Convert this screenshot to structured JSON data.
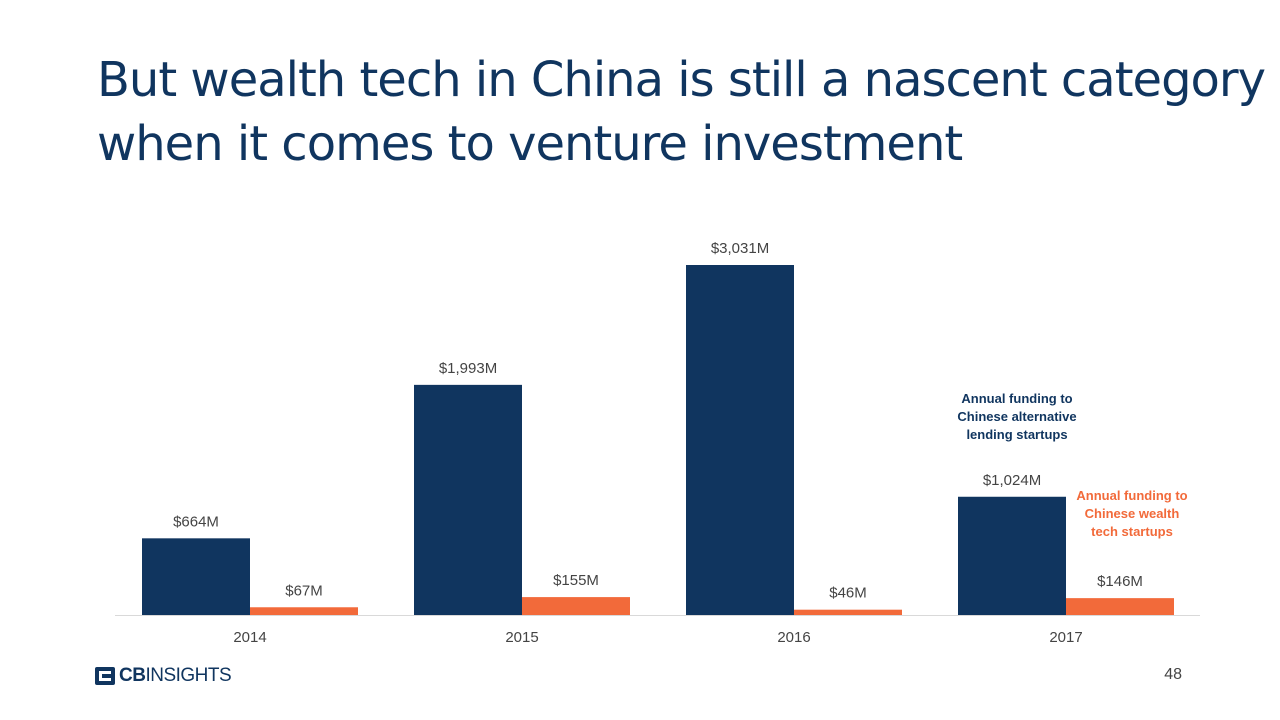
{
  "slide": {
    "title_line1": "But wealth tech in China is still a nascent category",
    "title_line2": "when it comes to venture investment",
    "page_number": "48"
  },
  "brand": {
    "name_bold": "CB",
    "name_regular": "INSIGHTS",
    "color": "#10355f"
  },
  "chart_data": {
    "type": "bar",
    "categories": [
      "2014",
      "2015",
      "2016",
      "2017"
    ],
    "series": [
      {
        "name": "Annual funding to Chinese alternative lending startups",
        "name_lines": [
          "Annual funding to",
          "Chinese alternative",
          "lending startups"
        ],
        "color": "#10355f",
        "values": [
          664,
          1993,
          3031,
          1024
        ],
        "labels": [
          "$664M",
          "$1,993M",
          "$3,031M",
          "$1,024M"
        ]
      },
      {
        "name": "Annual funding to Chinese wealth tech startups",
        "name_lines": [
          "Annual funding to",
          "Chinese wealth",
          "tech startups"
        ],
        "color": "#f26a3a",
        "values": [
          67,
          155,
          46,
          146
        ],
        "labels": [
          "$67M",
          "$155M",
          "$46M",
          "$146M"
        ]
      }
    ],
    "ylim": [
      0,
      3031
    ],
    "grid": false,
    "legend_placement": "right"
  }
}
